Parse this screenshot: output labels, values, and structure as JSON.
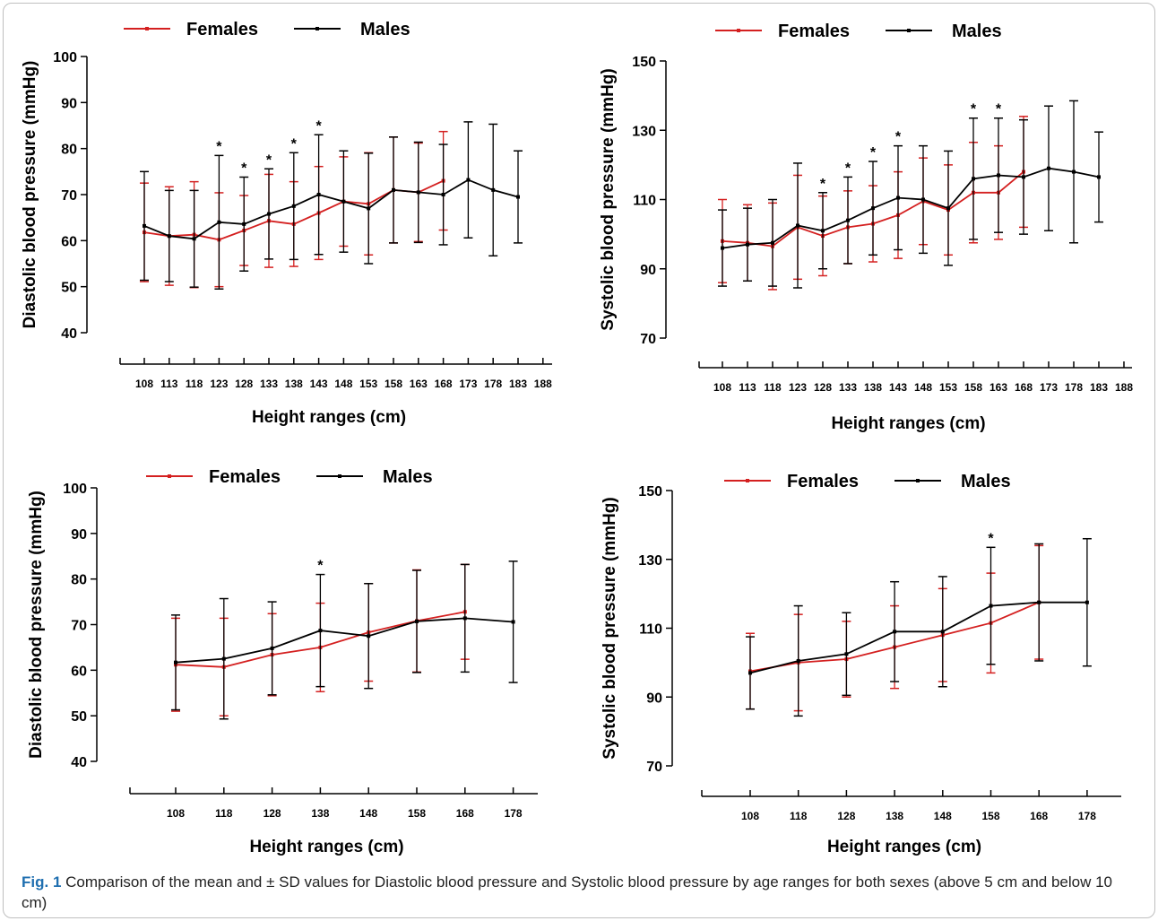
{
  "legend": {
    "series_1": "Females",
    "series_2": "Males"
  },
  "colors": {
    "Females": "#d42020",
    "Males": "#000000"
  },
  "caption": {
    "label": "Fig. 1",
    "text": "Comparison of the mean and ± SD values for Diastolic blood pressure and Systolic blood pressure by age ranges for both sexes (above 5 cm and below 10 cm)"
  },
  "chart_data": [
    {
      "type": "line",
      "title": "",
      "ylabel": "Diastolic blood pressure (mmHg)",
      "xlabel": "Height ranges (cm)",
      "ylim": [
        40,
        100
      ],
      "yticks": [
        40,
        50,
        60,
        70,
        80,
        90,
        100
      ],
      "categories": [
        "108",
        "113",
        "118",
        "123",
        "128",
        "133",
        "138",
        "143",
        "148",
        "153",
        "158",
        "163",
        "168",
        "173",
        "178",
        "183",
        "188"
      ],
      "significant": [
        "123",
        "128",
        "133",
        "138",
        "143"
      ],
      "legend_position": "top",
      "grid": false,
      "series": [
        {
          "name": "Females",
          "values": [
            61.8,
            61.0,
            61.3,
            60.2,
            62.2,
            64.3,
            63.6,
            66.0,
            68.5,
            68.0,
            71.0,
            70.5,
            73.0,
            null,
            null,
            null,
            null
          ],
          "sd": [
            10.7,
            10.7,
            11.5,
            10.2,
            7.6,
            10.1,
            9.2,
            10.1,
            9.7,
            11.1,
            11.5,
            10.7,
            10.7,
            null,
            null,
            null,
            null
          ]
        },
        {
          "name": "Males",
          "values": [
            63.2,
            61.0,
            60.4,
            64.0,
            63.6,
            65.8,
            67.5,
            70.0,
            68.5,
            67.0,
            71.0,
            70.5,
            70.0,
            73.2,
            71.0,
            69.5,
            null
          ],
          "sd": [
            11.8,
            9.9,
            10.5,
            14.5,
            10.2,
            9.8,
            11.6,
            13.0,
            11.0,
            12.0,
            11.5,
            10.9,
            10.9,
            12.6,
            14.3,
            10.0,
            null
          ]
        }
      ]
    },
    {
      "type": "line",
      "title": "",
      "ylabel": "Systolic blood pressure (mmHg)",
      "xlabel": "Height ranges (cm)",
      "ylim": [
        70,
        150
      ],
      "yticks": [
        70,
        90,
        110,
        130,
        150
      ],
      "categories": [
        "108",
        "113",
        "118",
        "123",
        "128",
        "133",
        "138",
        "143",
        "148",
        "153",
        "158",
        "163",
        "168",
        "173",
        "178",
        "183",
        "188"
      ],
      "significant": [
        "128",
        "133",
        "138",
        "143",
        "158",
        "163"
      ],
      "legend_position": "top",
      "grid": false,
      "series": [
        {
          "name": "Females",
          "values": [
            98.0,
            97.5,
            96.5,
            102.0,
            99.5,
            102.0,
            103.0,
            105.5,
            109.5,
            107.0,
            112.0,
            112.0,
            118.0,
            null,
            null,
            null,
            null
          ],
          "sd": [
            12.0,
            11.0,
            12.5,
            15.0,
            11.5,
            10.5,
            11.0,
            12.5,
            12.5,
            13.0,
            14.5,
            13.5,
            16.0,
            null,
            null,
            null,
            null
          ]
        },
        {
          "name": "Males",
          "values": [
            96.0,
            97.0,
            97.5,
            102.5,
            101.0,
            104.0,
            107.5,
            110.5,
            110.0,
            107.5,
            116.0,
            117.0,
            116.5,
            119.0,
            118.0,
            116.5,
            null
          ],
          "sd": [
            11.0,
            10.5,
            12.5,
            18.0,
            11.0,
            12.5,
            13.5,
            15.0,
            15.5,
            16.5,
            17.5,
            16.5,
            16.5,
            18.0,
            20.5,
            13.0,
            null
          ]
        }
      ]
    },
    {
      "type": "line",
      "title": "",
      "ylabel": "Diastolic blood pressure (mmHg)",
      "xlabel": "Height ranges (cm)",
      "ylim": [
        40,
        100
      ],
      "yticks": [
        40,
        50,
        60,
        70,
        80,
        90,
        100
      ],
      "categories": [
        "108",
        "118",
        "128",
        "138",
        "148",
        "158",
        "168",
        "178"
      ],
      "significant": [
        "138"
      ],
      "legend_position": "top",
      "grid": false,
      "series": [
        {
          "name": "Females",
          "values": [
            61.2,
            60.7,
            63.4,
            65.0,
            68.3,
            70.8,
            72.8,
            null
          ],
          "sd": [
            10.2,
            10.7,
            9.0,
            9.7,
            10.7,
            11.2,
            10.4,
            null
          ]
        },
        {
          "name": "Males",
          "values": [
            61.7,
            62.5,
            64.8,
            68.7,
            67.5,
            70.7,
            71.4,
            70.6
          ],
          "sd": [
            10.4,
            13.2,
            10.2,
            12.3,
            11.5,
            11.2,
            11.8,
            13.3
          ]
        }
      ]
    },
    {
      "type": "line",
      "title": "",
      "ylabel": "Systolic blood pressure (mmHg)",
      "xlabel": "Height ranges (cm)",
      "ylim": [
        70,
        150
      ],
      "yticks": [
        70,
        90,
        110,
        130,
        150
      ],
      "categories": [
        "108",
        "118",
        "128",
        "138",
        "148",
        "158",
        "168",
        "178"
      ],
      "significant": [
        "158"
      ],
      "legend_position": "top",
      "grid": false,
      "series": [
        {
          "name": "Females",
          "values": [
            97.5,
            100.0,
            101.0,
            104.5,
            108.0,
            111.5,
            117.5,
            null
          ],
          "sd": [
            11.0,
            14.0,
            11.0,
            12.0,
            13.5,
            14.5,
            16.5,
            null
          ]
        },
        {
          "name": "Males",
          "values": [
            97.0,
            100.5,
            102.5,
            109.0,
            109.0,
            116.5,
            117.5,
            117.5
          ],
          "sd": [
            10.5,
            16.0,
            12.0,
            14.5,
            16.0,
            17.0,
            17.0,
            18.5
          ]
        }
      ]
    }
  ]
}
